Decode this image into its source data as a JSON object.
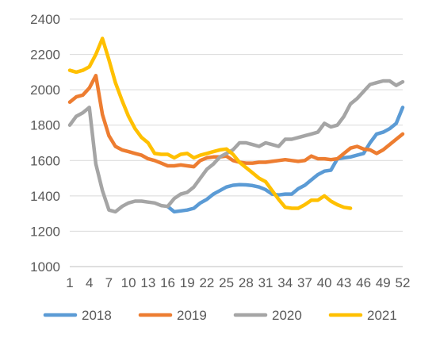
{
  "chart_data": {
    "type": "line",
    "title": "",
    "xlabel": "",
    "ylabel": "",
    "x_tick_labels": [
      "1",
      "4",
      "7",
      "10",
      "13",
      "16",
      "19",
      "22",
      "25",
      "28",
      "31",
      "34",
      "37",
      "40",
      "43",
      "46",
      "49",
      "52"
    ],
    "y_tick_labels": [
      "1000",
      "1200",
      "1400",
      "1600",
      "1800",
      "2000",
      "2200",
      "2400"
    ],
    "ylim": [
      1000,
      2400
    ],
    "xlim": [
      1,
      52
    ],
    "grid": "horizontal",
    "legend_position": "bottom",
    "series": [
      {
        "name": "2018",
        "color": "#5b9bd5",
        "x": [
          16,
          17,
          18,
          19,
          20,
          21,
          22,
          23,
          24,
          25,
          26,
          27,
          28,
          29,
          30,
          31,
          32,
          33,
          34,
          35,
          36,
          37,
          38,
          39,
          40,
          41,
          42,
          43,
          44,
          45,
          46,
          47,
          48,
          49,
          50,
          51,
          52
        ],
        "values": [
          1340,
          1310,
          1315,
          1320,
          1330,
          1360,
          1380,
          1410,
          1430,
          1450,
          1460,
          1463,
          1462,
          1458,
          1450,
          1435,
          1410,
          1405,
          1410,
          1410,
          1440,
          1460,
          1490,
          1520,
          1540,
          1545,
          1610,
          1615,
          1620,
          1630,
          1640,
          1700,
          1750,
          1760,
          1780,
          1810,
          1900
        ]
      },
      {
        "name": "2019",
        "color": "#ed7d31",
        "x": [
          1,
          2,
          3,
          4,
          5,
          6,
          7,
          8,
          9,
          10,
          11,
          12,
          13,
          14,
          15,
          16,
          17,
          18,
          19,
          20,
          21,
          22,
          23,
          24,
          25,
          26,
          27,
          28,
          29,
          30,
          31,
          32,
          33,
          34,
          35,
          36,
          37,
          38,
          39,
          40,
          41,
          42,
          43,
          44,
          45,
          46,
          47,
          48,
          49,
          50,
          51,
          52
        ],
        "values": [
          1930,
          1960,
          1970,
          2010,
          2080,
          1860,
          1740,
          1680,
          1660,
          1650,
          1640,
          1630,
          1610,
          1600,
          1585,
          1570,
          1570,
          1575,
          1570,
          1565,
          1600,
          1615,
          1620,
          1620,
          1625,
          1600,
          1590,
          1585,
          1585,
          1590,
          1590,
          1595,
          1600,
          1605,
          1600,
          1595,
          1600,
          1625,
          1610,
          1610,
          1605,
          1610,
          1640,
          1670,
          1680,
          1665,
          1660,
          1640,
          1660,
          1690,
          1720,
          1750
        ]
      },
      {
        "name": "2020",
        "color": "#a5a5a5",
        "x": [
          1,
          2,
          3,
          4,
          5,
          6,
          7,
          8,
          9,
          10,
          11,
          12,
          13,
          14,
          15,
          16,
          17,
          18,
          19,
          20,
          21,
          22,
          23,
          24,
          25,
          26,
          27,
          28,
          29,
          30,
          31,
          32,
          33,
          34,
          35,
          36,
          37,
          38,
          39,
          40,
          41,
          42,
          43,
          44,
          45,
          46,
          47,
          48,
          49,
          50,
          51,
          52
        ],
        "values": [
          1800,
          1850,
          1870,
          1900,
          1580,
          1430,
          1320,
          1310,
          1340,
          1360,
          1370,
          1370,
          1365,
          1360,
          1345,
          1340,
          1385,
          1410,
          1420,
          1450,
          1500,
          1550,
          1580,
          1620,
          1640,
          1660,
          1700,
          1700,
          1690,
          1680,
          1700,
          1690,
          1680,
          1720,
          1720,
          1730,
          1740,
          1750,
          1760,
          1810,
          1790,
          1800,
          1850,
          1920,
          1950,
          1990,
          2030,
          2040,
          2050,
          2050,
          2025,
          2045
        ]
      },
      {
        "name": "2021",
        "color": "#ffc000",
        "x": [
          1,
          2,
          3,
          4,
          5,
          6,
          7,
          8,
          9,
          10,
          11,
          12,
          13,
          14,
          15,
          16,
          17,
          18,
          19,
          20,
          21,
          22,
          23,
          24,
          25,
          26,
          27,
          28,
          29,
          30,
          31,
          32,
          33,
          34,
          35,
          36,
          37,
          38,
          39,
          40,
          41,
          42,
          43,
          44
        ],
        "values": [
          2110,
          2100,
          2110,
          2130,
          2200,
          2290,
          2170,
          2040,
          1940,
          1850,
          1780,
          1730,
          1700,
          1640,
          1635,
          1635,
          1615,
          1635,
          1640,
          1615,
          1630,
          1640,
          1650,
          1660,
          1665,
          1635,
          1590,
          1560,
          1530,
          1500,
          1480,
          1430,
          1380,
          1335,
          1330,
          1330,
          1350,
          1375,
          1375,
          1400,
          1370,
          1350,
          1335,
          1330
        ]
      }
    ]
  }
}
